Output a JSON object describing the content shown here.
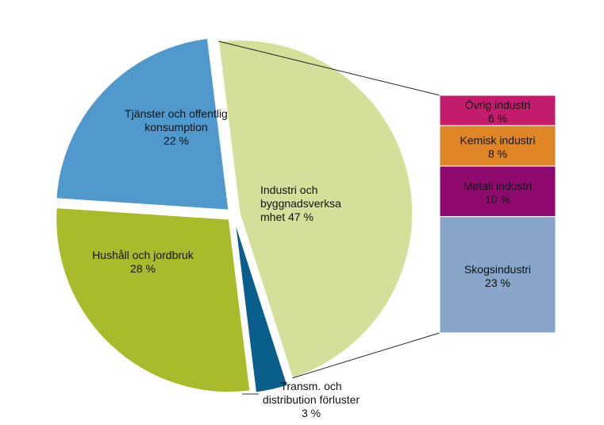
{
  "chart_data": {
    "type": "pie",
    "title": "",
    "slices": [
      {
        "label_lines": [
          "Industri och",
          "byggnadsverksa",
          "mhet 47 %"
        ],
        "value": 47,
        "color": "#d4e09a"
      },
      {
        "label_lines": [
          "Transm. och",
          "distribution  förluster",
          "3 %"
        ],
        "value": 3,
        "color": "#0a5e8c"
      },
      {
        "label_lines": [
          "Hushåll och jordbruk",
          "28 %"
        ],
        "value": 28,
        "color": "#a9bb2a"
      },
      {
        "label_lines": [
          "Tjänster och offentlig",
          "konsumption",
          "22 %"
        ],
        "value": 22,
        "color": "#5099cc"
      }
    ],
    "breakdown": {
      "of": "Industri och byggnadsverksamhet",
      "segments": [
        {
          "label_lines": [
            "Övrig industri",
            "6 %"
          ],
          "value": 6,
          "color": "#c41c6c"
        },
        {
          "label_lines": [
            "Kemisk industri",
            "8 %"
          ],
          "value": 8,
          "color": "#e08526"
        },
        {
          "label_lines": [
            "Metall  industri",
            "10 %"
          ],
          "value": 10,
          "color": "#8e0a6e"
        },
        {
          "label_lines": [
            "Skogsindustri",
            "23 %"
          ],
          "value": 23,
          "color": "#86a5c8"
        }
      ]
    }
  }
}
